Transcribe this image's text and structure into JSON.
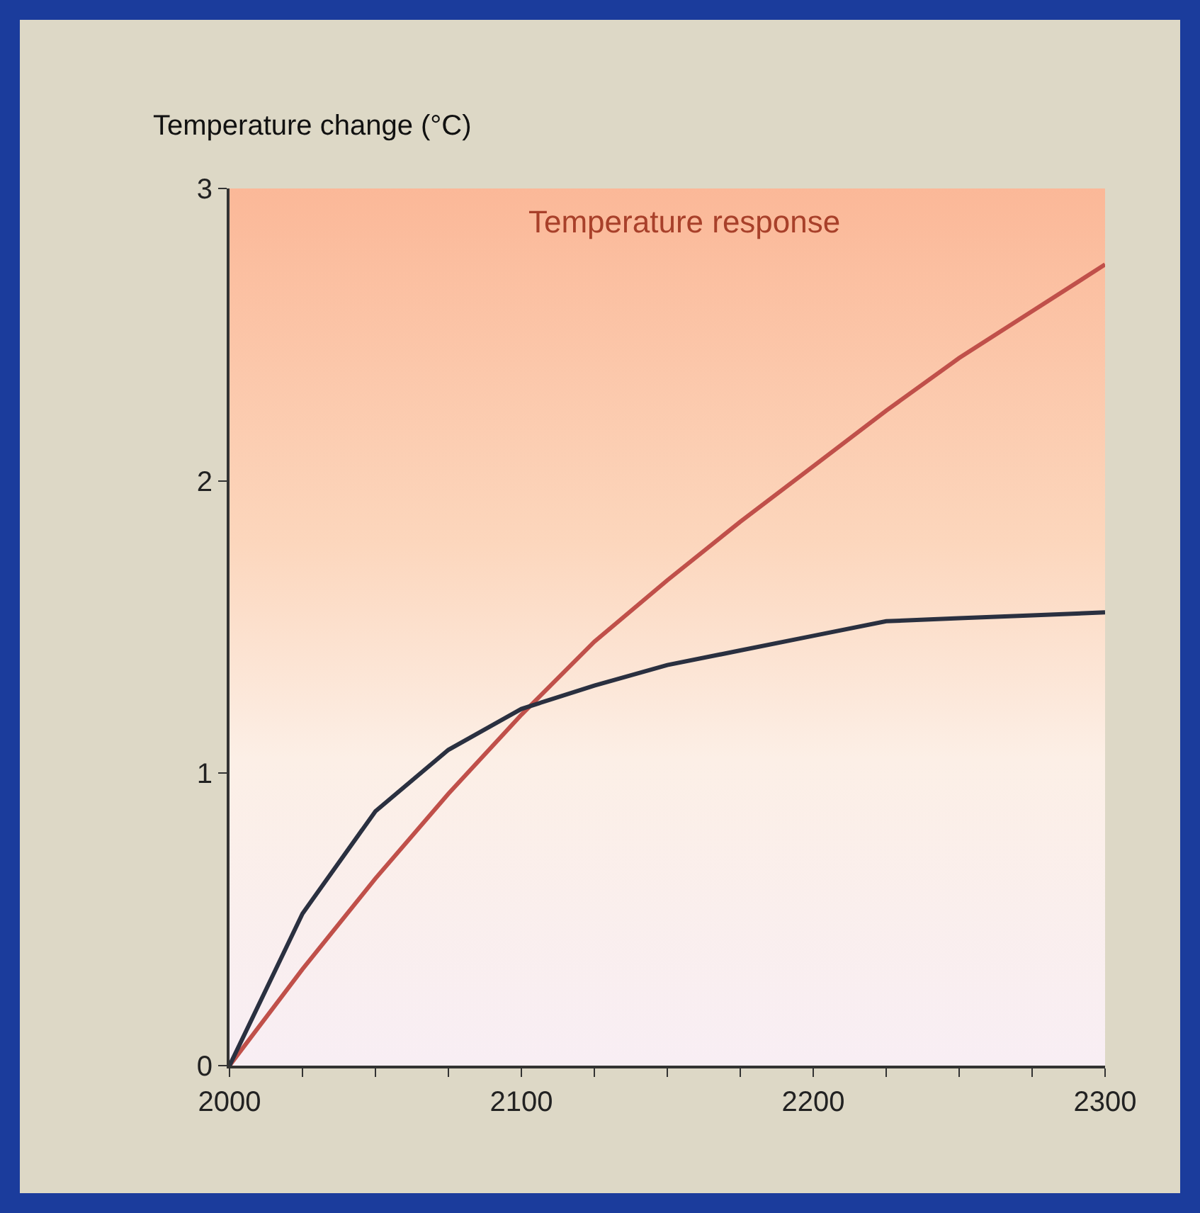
{
  "chart_data": {
    "type": "line",
    "ylabel": "Temperature change (°C)",
    "annotations": [
      "Temperature response"
    ],
    "x": [
      2000,
      2025,
      2050,
      2075,
      2100,
      2125,
      2150,
      2175,
      2200,
      2225,
      2250,
      2275,
      2300
    ],
    "series": [
      {
        "color": "#c0504a",
        "values": [
          0,
          0.33,
          0.64,
          0.93,
          1.2,
          1.45,
          1.66,
          1.86,
          2.05,
          2.24,
          2.42,
          2.58,
          2.74
        ]
      },
      {
        "color": "#2a3040",
        "values": [
          0,
          0.52,
          0.87,
          1.08,
          1.22,
          1.3,
          1.37,
          1.42,
          1.47,
          1.52,
          1.53,
          1.54,
          1.55
        ]
      }
    ],
    "xlim": [
      2000,
      2300
    ],
    "xticks": [
      2000,
      {
        "value": 2025,
        "label": null
      },
      {
        "value": 2050,
        "label": null
      },
      {
        "value": 2075,
        "label": null
      },
      2100,
      {
        "value": 2125,
        "label": null
      },
      {
        "value": 2150,
        "label": null
      },
      {
        "value": 2175,
        "label": null
      },
      2200,
      {
        "value": 2225,
        "label": null
      },
      {
        "value": 2250,
        "label": null
      },
      {
        "value": 2275,
        "label": null
      },
      2300
    ],
    "ylim": [
      0,
      3
    ],
    "yticks": [
      0,
      1,
      2,
      3
    ],
    "grid": false
  }
}
